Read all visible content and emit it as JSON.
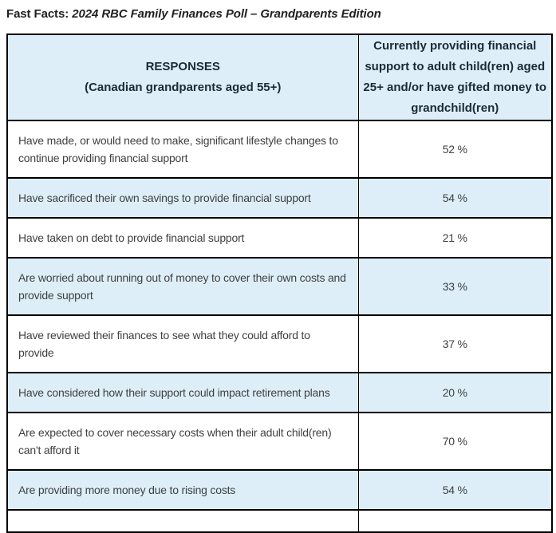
{
  "page": {
    "title_prefix": "Fast Facts:",
    "title_poll_name": "2024 RBC Family Finances Poll – Grandparents Edition"
  },
  "table": {
    "header": {
      "responses_lines": [
        "RESPONSES",
        "(Canadian grandparents aged 55+)"
      ],
      "support_lines": [
        "Currently providing financial",
        "support to adult child(ren) aged",
        "25+ and/or have gifted money to",
        "grandchild(ren)"
      ]
    },
    "rows": [
      {
        "response": "Have made, or would need to make, significant lifestyle changes to continue providing financial support",
        "value": "52 %"
      },
      {
        "response": "Have sacrificed their own savings to provide financial support",
        "value": "54 %"
      },
      {
        "response": "Have taken on debt to provide financial support",
        "value": "21 %"
      },
      {
        "response": "Are worried about running out of money to cover their own costs and provide support",
        "value": "33 %"
      },
      {
        "response": "Have reviewed their finances to see what they could afford to provide",
        "value": "37 %"
      },
      {
        "response": "Have considered how their support could impact retirement plans",
        "value": "20 %"
      },
      {
        "response": "Are expected to cover necessary costs when their adult child(ren) can't afford it",
        "value": "70 %"
      },
      {
        "response": "Are providing more money due to rising costs",
        "value": "54 %"
      },
      {
        "response": "",
        "value": ""
      }
    ]
  },
  "colors": {
    "row_highlight": "#ddeef9",
    "border": "#000000",
    "body_text": "#404040",
    "header_text": "#1c2a35",
    "title_text": "#212121"
  }
}
